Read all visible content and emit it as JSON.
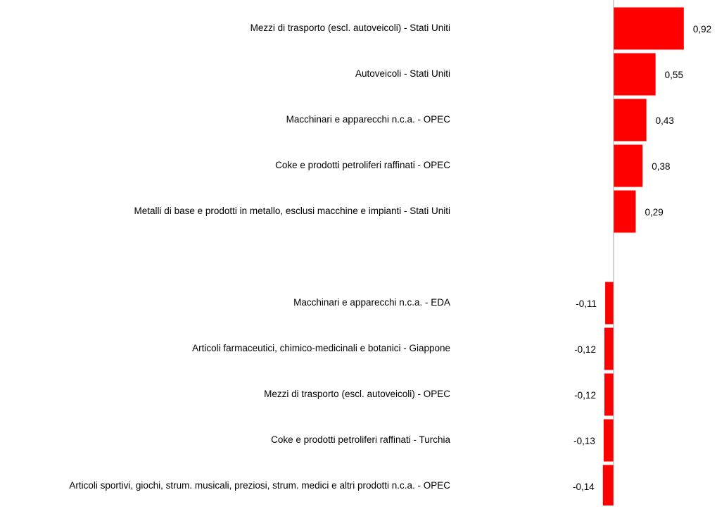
{
  "chart_data": {
    "type": "bar",
    "orientation": "horizontal",
    "color": "#ff0000",
    "categories": [
      "Mezzi di trasporto (escl. autoveicoli) - Stati Uniti",
      "Autoveicoli - Stati Uniti",
      "Macchinari e apparecchi n.c.a. - OPEC",
      "Coke e prodotti petroliferi raffinati - OPEC",
      "Metalli di base e prodotti in metallo, esclusi macchine e impianti - Stati Uniti",
      null,
      "Macchinari e apparecchi n.c.a. - EDA",
      "Articoli farmaceutici, chimico-medicinali e botanici - Giappone",
      "Mezzi di trasporto (escl. autoveicoli) - OPEC",
      "Coke e prodotti petroliferi raffinati - Turchia",
      "Articoli sportivi, giochi, strum. musicali, preziosi, strum. medici e altri prodotti n.c.a. - OPEC"
    ],
    "values": [
      0.92,
      0.55,
      0.43,
      0.38,
      0.29,
      null,
      -0.11,
      -0.12,
      -0.12,
      -0.13,
      -0.14
    ],
    "value_labels": [
      "0,92",
      "0,55",
      "0,43",
      "0,38",
      "0,29",
      null,
      "-0,11",
      "-0,12",
      "-0,12",
      "-0,13",
      "-0,14"
    ]
  }
}
